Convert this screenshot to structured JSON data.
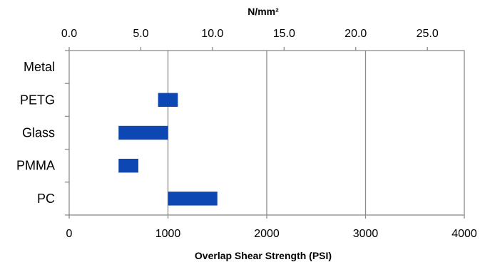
{
  "chart_data": {
    "type": "bar",
    "orientation": "horizontal",
    "subtype": "floating-range",
    "categories": [
      "Metal",
      "PETG",
      "Glass",
      "PMMA",
      "PC"
    ],
    "ranges": [
      null,
      [
        900,
        1100
      ],
      [
        500,
        1000
      ],
      [
        500,
        700
      ],
      [
        1000,
        1500
      ]
    ],
    "bar_color": "#0d47b3",
    "xlabel": "Overlap Shear Strength (PSI)",
    "xlim": [
      0,
      4000
    ],
    "xticks": [
      0,
      1000,
      2000,
      3000,
      4000
    ],
    "xtick_labels": [
      "0",
      "1000",
      "2000",
      "3000",
      "4000"
    ],
    "secondary_xlabel": "N/mm²",
    "secondary_xlim": [
      0,
      27.579
    ],
    "secondary_xticks": [
      0,
      5,
      10,
      15,
      20,
      25
    ],
    "secondary_xtick_labels": [
      "0.0",
      "5.0",
      "10.0",
      "15.0",
      "20.0",
      "25.0"
    ],
    "grid": true,
    "legend": "none"
  }
}
